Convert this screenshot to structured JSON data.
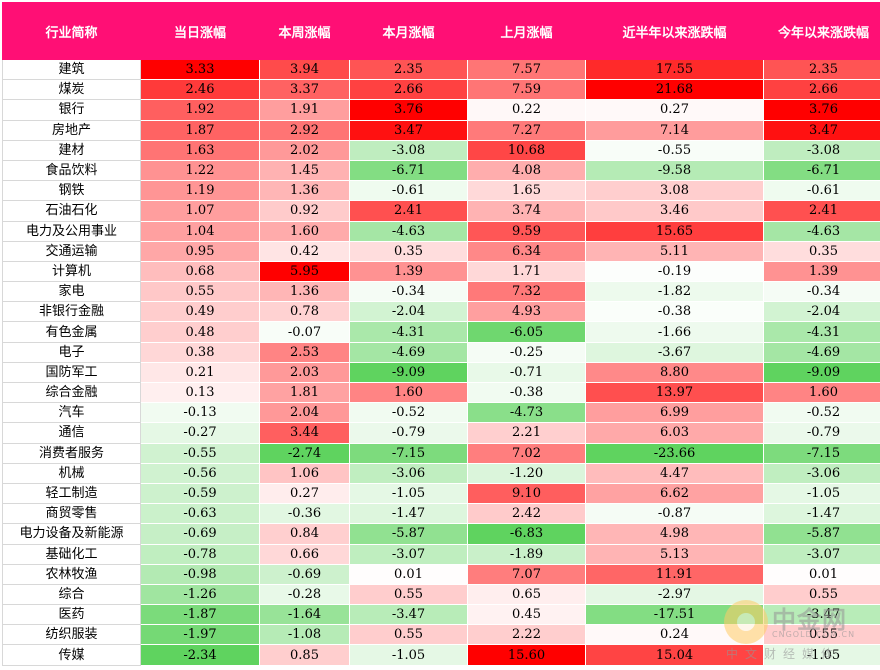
{
  "headers": [
    "行业简称",
    "当日涨幅",
    "本周涨幅",
    "本月涨幅",
    "上月涨幅",
    "近半年以来涨跌幅",
    "今年以来涨跌幅"
  ],
  "rows": [
    {
      "name": "建筑",
      "values": [
        "3.33",
        "3.94",
        "2.35",
        "7.57",
        "17.55",
        "2.35"
      ]
    },
    {
      "name": "煤炭",
      "values": [
        "2.46",
        "3.37",
        "2.66",
        "7.59",
        "21.68",
        "2.66"
      ]
    },
    {
      "name": "银行",
      "values": [
        "1.92",
        "1.91",
        "3.76",
        "0.22",
        "0.27",
        "3.76"
      ]
    },
    {
      "name": "房地产",
      "values": [
        "1.87",
        "2.92",
        "3.47",
        "7.27",
        "7.14",
        "3.47"
      ]
    },
    {
      "name": "建材",
      "values": [
        "1.63",
        "2.02",
        "-3.08",
        "10.68",
        "-0.55",
        "-3.08"
      ]
    },
    {
      "name": "食品饮料",
      "values": [
        "1.22",
        "1.45",
        "-6.71",
        "4.08",
        "-9.58",
        "-6.71"
      ]
    },
    {
      "name": "钢铁",
      "values": [
        "1.19",
        "1.36",
        "-0.61",
        "1.65",
        "3.08",
        "-0.61"
      ]
    },
    {
      "name": "石油石化",
      "values": [
        "1.07",
        "0.92",
        "2.41",
        "3.74",
        "3.46",
        "2.41"
      ]
    },
    {
      "name": "电力及公用事业",
      "values": [
        "1.04",
        "1.60",
        "-4.63",
        "9.59",
        "15.65",
        "-4.63"
      ]
    },
    {
      "name": "交通运输",
      "values": [
        "0.95",
        "0.42",
        "0.35",
        "6.34",
        "5.11",
        "0.35"
      ]
    },
    {
      "name": "计算机",
      "values": [
        "0.68",
        "5.95",
        "1.39",
        "1.71",
        "-0.19",
        "1.39"
      ]
    },
    {
      "name": "家电",
      "values": [
        "0.55",
        "1.36",
        "-0.34",
        "7.32",
        "-1.82",
        "-0.34"
      ]
    },
    {
      "name": "非银行金融",
      "values": [
        "0.49",
        "0.78",
        "-2.04",
        "4.93",
        "-0.38",
        "-2.04"
      ]
    },
    {
      "name": "有色金属",
      "values": [
        "0.48",
        "-0.07",
        "-4.31",
        "-6.05",
        "-1.66",
        "-4.31"
      ]
    },
    {
      "name": "电子",
      "values": [
        "0.38",
        "2.53",
        "-4.69",
        "-0.25",
        "-3.67",
        "-4.69"
      ]
    },
    {
      "name": "国防军工",
      "values": [
        "0.21",
        "2.03",
        "-9.09",
        "-0.71",
        "8.80",
        "-9.09"
      ]
    },
    {
      "name": "综合金融",
      "values": [
        "0.13",
        "1.81",
        "1.60",
        "-0.38",
        "13.97",
        "1.60"
      ]
    },
    {
      "name": "汽车",
      "values": [
        "-0.13",
        "2.04",
        "-0.52",
        "-4.73",
        "6.99",
        "-0.52"
      ]
    },
    {
      "name": "通信",
      "values": [
        "-0.27",
        "3.44",
        "-0.79",
        "2.21",
        "6.03",
        "-0.79"
      ]
    },
    {
      "name": "消费者服务",
      "values": [
        "-0.55",
        "-2.74",
        "-7.15",
        "7.02",
        "-23.66",
        "-7.15"
      ]
    },
    {
      "name": "机械",
      "values": [
        "-0.56",
        "1.06",
        "-3.06",
        "-1.20",
        "4.47",
        "-3.06"
      ]
    },
    {
      "name": "轻工制造",
      "values": [
        "-0.59",
        "0.27",
        "-1.05",
        "9.10",
        "6.62",
        "-1.05"
      ]
    },
    {
      "name": "商贸零售",
      "values": [
        "-0.63",
        "-0.36",
        "-1.47",
        "2.42",
        "-0.87",
        "-1.47"
      ]
    },
    {
      "name": "电力设备及新能源",
      "values": [
        "-0.69",
        "0.84",
        "-5.87",
        "-6.83",
        "4.98",
        "-5.87"
      ]
    },
    {
      "name": "基础化工",
      "values": [
        "-0.78",
        "0.66",
        "-3.07",
        "-1.89",
        "5.13",
        "-3.07"
      ]
    },
    {
      "name": "农林牧渔",
      "values": [
        "-0.98",
        "-0.69",
        "0.01",
        "7.07",
        "11.91",
        "0.01"
      ]
    },
    {
      "name": "综合",
      "values": [
        "-1.26",
        "-0.28",
        "0.55",
        "0.65",
        "-2.97",
        "0.55"
      ]
    },
    {
      "name": "医药",
      "values": [
        "-1.87",
        "-1.64",
        "-3.47",
        "0.45",
        "-17.51",
        "-3.47"
      ]
    },
    {
      "name": "纺织服装",
      "values": [
        "-1.97",
        "-1.08",
        "0.55",
        "2.22",
        "0.24",
        "0.55"
      ]
    },
    {
      "name": "传媒",
      "values": [
        "-2.34",
        "0.85",
        "-1.05",
        "15.60",
        "15.04",
        "-1.05"
      ]
    }
  ],
  "colors": {
    "header_bg": "#ff0f75",
    "positive": "#ff0000",
    "negative": "#5fd35f",
    "neutral": "#ffffff"
  },
  "watermark": {
    "name": "中金网",
    "url": "CNGOLD.COM.CN",
    "slogan": "中文财经媒体"
  }
}
